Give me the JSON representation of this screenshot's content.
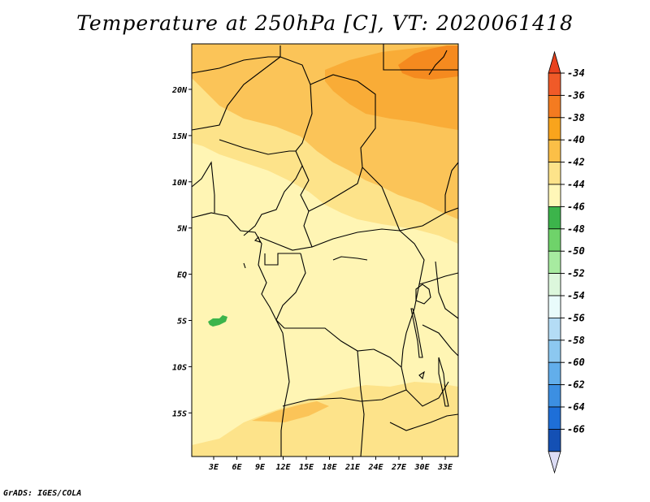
{
  "title": "Temperature at 250hPa [C], VT: 2020061418",
  "credit": "GrADS: IGES/COLA",
  "map": {
    "lat_labels": [
      "20N",
      "15N",
      "10N",
      "5N",
      "EQ",
      "5S",
      "10S",
      "15S"
    ],
    "lon_labels": [
      "3E",
      "6E",
      "9E",
      "12E",
      "15E",
      "18E",
      "21E",
      "24E",
      "27E",
      "30E",
      "33E"
    ]
  },
  "colorbar": {
    "levels": [
      {
        "label": "-34",
        "color": "#f05a28"
      },
      {
        "label": "-36",
        "color": "#f47b20"
      },
      {
        "label": "-38",
        "color": "#f9a41c"
      },
      {
        "label": "-40",
        "color": "#fbbf47"
      },
      {
        "label": "-42",
        "color": "#fde38a"
      },
      {
        "label": "-44",
        "color": "#fff7b8"
      },
      {
        "label": "-46",
        "color": "#3cb44b"
      },
      {
        "label": "-48",
        "color": "#6fd36a"
      },
      {
        "label": "-50",
        "color": "#a7eba0"
      },
      {
        "label": "-52",
        "color": "#dcf7dc"
      },
      {
        "label": "-54",
        "color": "#e9fbfb"
      },
      {
        "label": "-56",
        "color": "#b4dcf5"
      },
      {
        "label": "-58",
        "color": "#8cc8f0"
      },
      {
        "label": "-60",
        "color": "#62aeeb"
      },
      {
        "label": "-62",
        "color": "#3c8fe2"
      },
      {
        "label": "-64",
        "color": "#1e6fd8"
      },
      {
        "label": "-66",
        "color": "#1450b4"
      }
    ],
    "top_triangle_color": "#e8421e",
    "bottom_segment_color": "#0a1e78",
    "bottom_triangle_color": "#dcdcf5"
  },
  "field_colors": {
    "base": "#fff5b4",
    "warm1": "#fde38a",
    "warm2": "#fbc458",
    "warm3": "#f9ac37",
    "warm4": "#f58a1f",
    "cold_spot": "#3cb44b"
  }
}
